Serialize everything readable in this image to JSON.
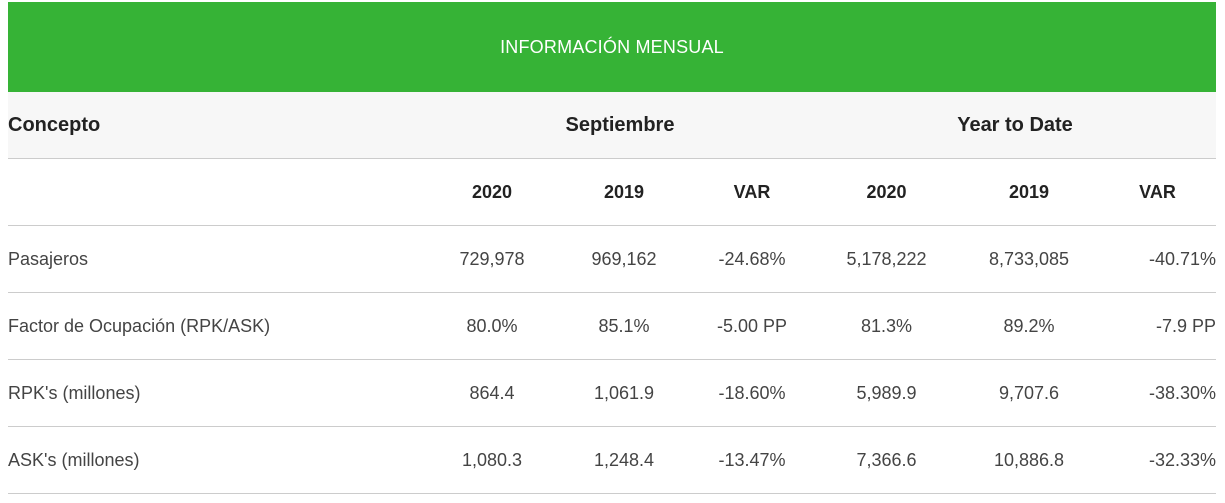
{
  "banner": {
    "title": "INFORMACIÓN MENSUAL"
  },
  "header": {
    "concept": "Concepto",
    "group_month": "Septiembre",
    "group_ytd": "Year to Date"
  },
  "subheader": {
    "c1": "2020",
    "c2": "2019",
    "c3": "VAR",
    "c4": "2020",
    "c5": "2019",
    "c6": "VAR"
  },
  "rows": [
    {
      "label": "Pasajeros",
      "m2020": "729,978",
      "m2019": "969,162",
      "mvar": "-24.68%",
      "y2020": "5,178,222",
      "y2019": "8,733,085",
      "yvar": "-40.71%"
    },
    {
      "label": "Factor de Ocupación (RPK/ASK)",
      "m2020": "80.0%",
      "m2019": "85.1%",
      "mvar": "-5.00 PP",
      "y2020": "81.3%",
      "y2019": "89.2%",
      "yvar": "-7.9 PP"
    },
    {
      "label": "RPK's (millones)",
      "m2020": "864.4",
      "m2019": "1,061.9",
      "mvar": "-18.60%",
      "y2020": "5,989.9",
      "y2019": "9,707.6",
      "yvar": "-38.30%"
    },
    {
      "label": "ASK's (millones)",
      "m2020": "1,080.3",
      "m2019": "1,248.4",
      "mvar": "-13.47%",
      "y2020": "7,366.6",
      "y2019": "10,886.8",
      "yvar": "-32.33%"
    }
  ]
}
